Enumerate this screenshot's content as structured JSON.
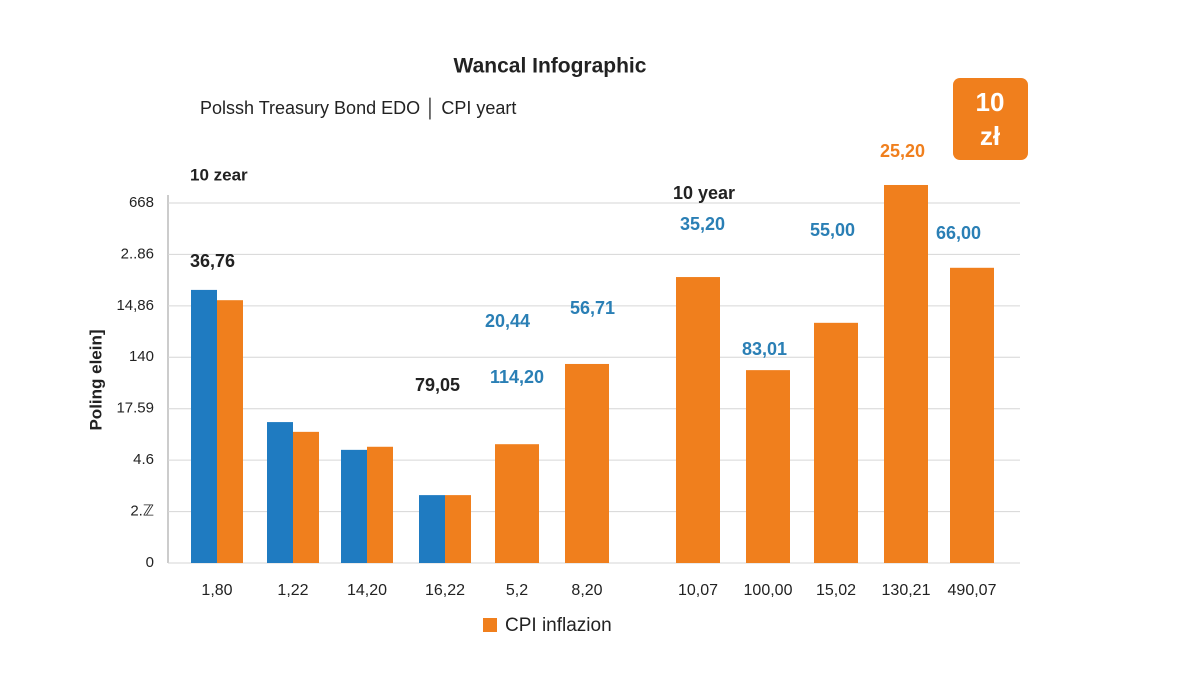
{
  "chart_data": {
    "type": "bar",
    "title": "Wancal Infographic",
    "subtitle": "Polssh Treasury Bond EDO │ CPI yeart",
    "y_label": "Poling elein]",
    "categories": [
      "1,80",
      "1,22",
      "14,20",
      "16,22",
      "5,2",
      "8,20",
      "10,07",
      "100,00",
      "15,02",
      "130,21",
      "490,07"
    ],
    "series": [
      {
        "color": "#1f7bc1",
        "values": [
          5.31,
          2.74,
          2.2,
          1.32,
          null,
          null,
          null,
          null,
          null,
          null,
          null
        ]
      },
      {
        "name": "CPI inflazion",
        "color": "#f07f1d",
        "values": [
          5.11,
          2.55,
          2.26,
          1.32,
          2.31,
          3.87,
          5.56,
          3.75,
          4.67,
          7.35,
          5.74
        ]
      }
    ],
    "ylim": [
      0,
      7.5
    ],
    "yticks": [
      0,
      {
        "value": 1,
        "label": "2.ℤ"
      },
      {
        "value": 2,
        "label": "4.6"
      },
      {
        "value": 3,
        "label": "17.59"
      },
      {
        "value": 4,
        "label": "140"
      },
      {
        "value": 5,
        "label": "14,86"
      },
      {
        "value": 6,
        "label": "2..86"
      },
      {
        "value": 7,
        "label": "668"
      }
    ],
    "grid": true,
    "legend": "bottom",
    "annotations": [
      {
        "text": "10 zear",
        "color": "#222"
      },
      {
        "text": "36,76",
        "color": "#222"
      },
      {
        "text": "79,05",
        "color": "#222"
      },
      {
        "text": "20,44",
        "color": "#2a7fb5"
      },
      {
        "text": "56,71",
        "color": "#2a7fb5"
      },
      {
        "text": "114,20",
        "color": "#2a7fb5"
      },
      {
        "text": "10 year",
        "color": "#222"
      },
      {
        "text": "35,20",
        "color": "#2a7fb5"
      },
      {
        "text": "83,01",
        "color": "#2a7fb5"
      },
      {
        "text": "55,00",
        "color": "#2a7fb5"
      },
      {
        "text": "66,00",
        "color": "#2a7fb5"
      },
      {
        "text": "25,20",
        "color": "#f07f1d"
      }
    ],
    "badge": {
      "lines": [
        "10",
        "zł"
      ],
      "color": "#f07f1d"
    }
  }
}
